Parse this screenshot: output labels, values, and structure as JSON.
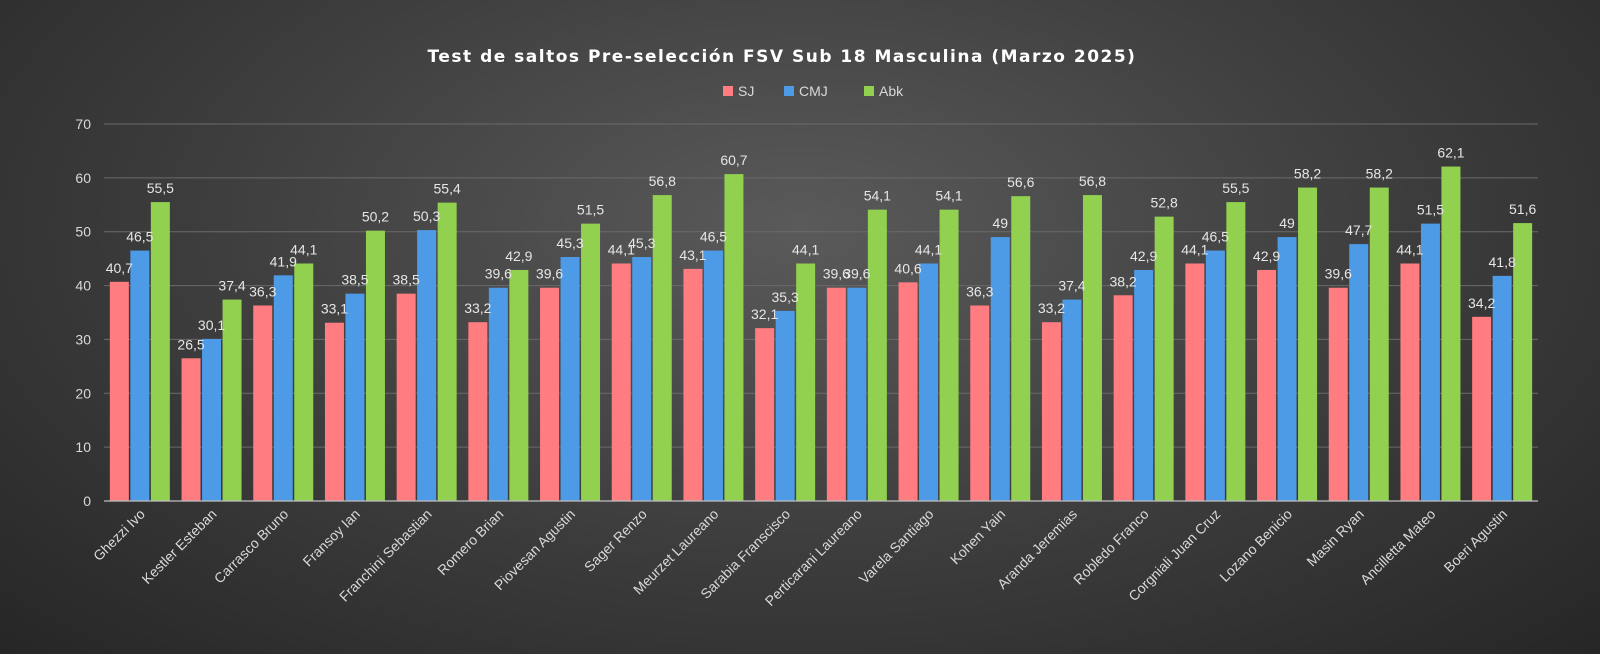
{
  "chart_data": {
    "type": "bar",
    "title": "Test de saltos Pre-selección FSV Sub 18 Masculina (Marzo 2025)",
    "xlabel": "",
    "ylabel": "",
    "ylim": [
      0,
      70
    ],
    "yticks": [
      0,
      10,
      20,
      30,
      40,
      50,
      60,
      70
    ],
    "grid": true,
    "legend_position": "top-center",
    "categories": [
      "Ghezzi Ivo",
      "Kestler Esteban",
      "Carrasco Bruno",
      "Fransoy Ian",
      "Franchini Sebastian",
      "Romero Brian",
      "Piovesan Agustin",
      "Sager Renzo",
      "Meurzet Laureano",
      "Sarabia Franscisco",
      "Perticarani Laureano",
      "Varela Santiago",
      "Kohen Yain",
      "Aranda Jeremias",
      "Robledo Franco",
      "Corgniali Juan Cruz",
      "Lozano Benicio",
      "Masin Ryan",
      "Ancilletta Mateo",
      "Boeri Agustin"
    ],
    "series": [
      {
        "name": "SJ",
        "color": "#ff7c80",
        "values": [
          40.7,
          26.5,
          36.3,
          33.1,
          38.5,
          33.2,
          39.6,
          44.1,
          43.1,
          32.1,
          39.6,
          40.6,
          36.3,
          33.2,
          38.2,
          44.1,
          42.9,
          39.6,
          44.1,
          34.2
        ],
        "labels": [
          "40,7",
          "26,5",
          "36,3",
          "33,1",
          "38,5",
          "33,2",
          "39,6",
          "44,1",
          "43,1",
          "32,1",
          "39,6",
          "40,6",
          "36,3",
          "33,2",
          "38,2",
          "44,1",
          "42,9",
          "39,6",
          "44,1",
          "34,2"
        ]
      },
      {
        "name": "CMJ",
        "color": "#4d9be6",
        "values": [
          46.5,
          30.1,
          41.9,
          38.5,
          50.3,
          39.6,
          45.3,
          45.3,
          46.5,
          35.3,
          39.6,
          44.1,
          49,
          37.4,
          42.9,
          46.5,
          49,
          47.7,
          51.5,
          41.8
        ],
        "labels": [
          "46,5",
          "30,1",
          "41,9",
          "38,5",
          "50,3",
          "39,6",
          "45,3",
          "45,3",
          "46,5",
          "35,3",
          "39,6",
          "44,1",
          "49",
          "37,4",
          "42,9",
          "46,5",
          "49",
          "47,7",
          "51,5",
          "41,8"
        ]
      },
      {
        "name": "Abk",
        "color": "#92d050",
        "values": [
          55.5,
          37.4,
          44.1,
          50.2,
          55.4,
          42.9,
          51.5,
          56.8,
          60.7,
          44.1,
          54.1,
          54.1,
          56.6,
          56.8,
          52.8,
          55.5,
          58.2,
          58.2,
          62.1,
          51.6
        ],
        "labels": [
          "55,5",
          "37,4",
          "44,1",
          "50,2",
          "55,4",
          "42,9",
          "51,5",
          "56,8",
          "60,7",
          "44,1",
          "54,1",
          "54,1",
          "56,6",
          "56,8",
          "52,8",
          "55,5",
          "58,2",
          "58,2",
          "62,1",
          "51,6"
        ]
      }
    ]
  }
}
